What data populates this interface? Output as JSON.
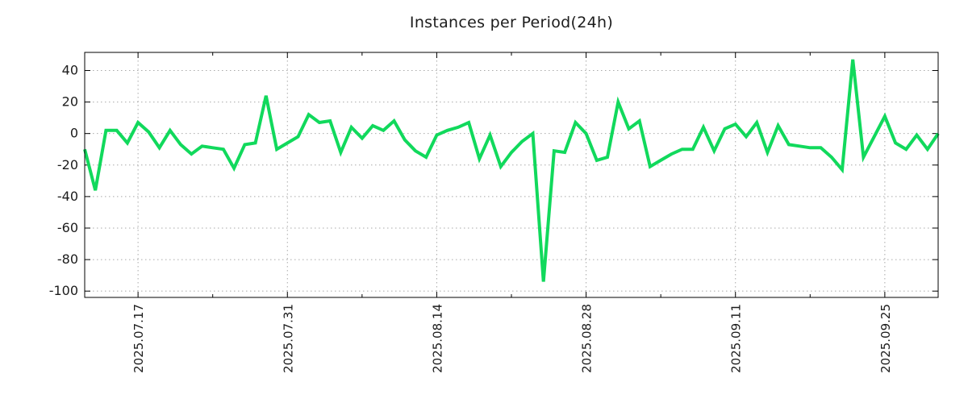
{
  "chart_data": {
    "type": "line",
    "title": "Instances per Period(24h)",
    "legend": "none",
    "grid": true,
    "background": "#ffffff",
    "axis_color": "#000000",
    "grid_color": "#a9a9a9",
    "text_color": "#1c1c1c",
    "ylim": [
      -104,
      51.5
    ],
    "y_ticks": [
      40,
      20,
      0,
      -20,
      -40,
      -60,
      -80,
      -100
    ],
    "x_tick_labels": [
      {
        "index": 5,
        "label": "2025.07.17"
      },
      {
        "index": 19,
        "label": "2025.07.31"
      },
      {
        "index": 33,
        "label": "2025.08.14"
      },
      {
        "index": 47,
        "label": "2025.08.28"
      },
      {
        "index": 61,
        "label": "2025.09.11"
      },
      {
        "index": 75,
        "label": "2025.09.25"
      }
    ],
    "x_minor_tick_indices": [
      12,
      26,
      40,
      54,
      68
    ],
    "series": [
      {
        "name": "instances",
        "color": "#11d95c",
        "values": [
          -10,
          -36,
          2,
          2,
          -6,
          7,
          1,
          -9,
          2,
          -7,
          -13,
          -8,
          -9,
          -10,
          -22,
          -7,
          -6,
          24,
          -10,
          -6,
          -2,
          12,
          7,
          8,
          -12,
          4,
          -3,
          5,
          2,
          8,
          -4,
          -11,
          -15,
          -1,
          2,
          4,
          7,
          -16,
          -1,
          -21,
          -12,
          -5,
          0,
          -94,
          -11,
          -12,
          7,
          0,
          -17,
          -15,
          20,
          3,
          8,
          -21,
          -17,
          -13,
          -10,
          -10,
          4,
          -11,
          3,
          6,
          -2,
          7,
          -12,
          5,
          -7,
          -8,
          -9,
          -9,
          -15,
          -23,
          47,
          -15,
          -2,
          11,
          -6,
          -10,
          -1,
          -10,
          0
        ]
      }
    ]
  }
}
